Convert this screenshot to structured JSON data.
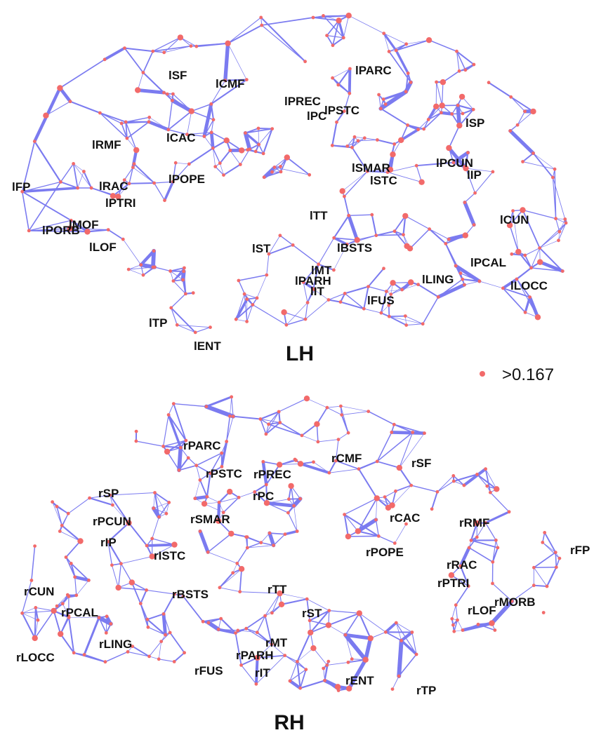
{
  "colors": {
    "edge": "#7b7bf0",
    "edge_strong": "#3a3ae8",
    "node": "#f26a6a",
    "text": "#111111"
  },
  "legend": {
    "marker": "node-dot",
    "label": ">0.167"
  },
  "hemispheres": [
    {
      "id": "lh",
      "title": "LH",
      "regions": [
        "lSF",
        "lCMF",
        "lPARC",
        "lPREC",
        "lPSTC",
        "lPC",
        "lSP",
        "lRMF",
        "lCAC",
        "lSMAR",
        "lPCUN",
        "lSTC",
        "lIP",
        "lFP",
        "lRAC",
        "lPOPE",
        "lPTRI",
        "lMOF",
        "lPORB",
        "lTT",
        "lCUN",
        "lLOF",
        "lST",
        "lBSTS",
        "lPCAL",
        "lMT",
        "lLING",
        "lPARH",
        "lLOCC",
        "lIT",
        "lFUS",
        "lTP",
        "lENT"
      ]
    },
    {
      "id": "rh",
      "title": "RH",
      "regions": [
        "rPARC",
        "rCMF",
        "rSF",
        "rPSTC",
        "rPREC",
        "rSP",
        "rPC",
        "rPCUN",
        "rSMAR",
        "rCAC",
        "rRMF",
        "rIP",
        "rFP",
        "rISTC",
        "rPOPE",
        "rRAC",
        "rPTRI",
        "rMORB",
        "rLOF",
        "rCUN",
        "rBSTS",
        "rTT",
        "rST",
        "rPCAL",
        "rMT",
        "rLING",
        "rPARH",
        "rLOCC",
        "rFUS",
        "rIT",
        "rENT",
        "rTP"
      ]
    }
  ]
}
